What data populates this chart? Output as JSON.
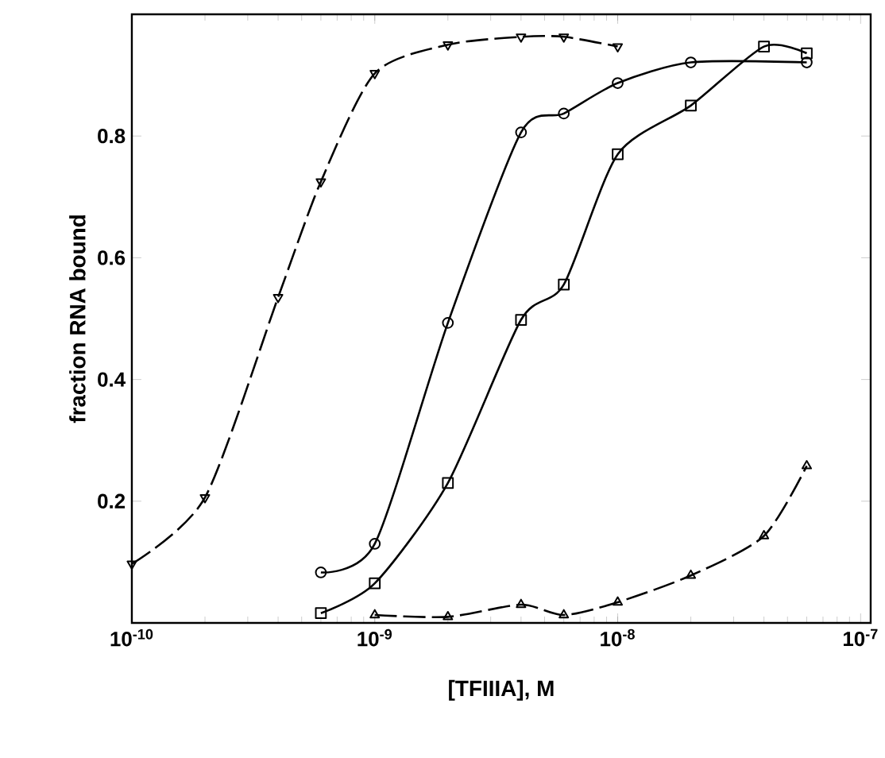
{
  "chart_data": {
    "type": "line",
    "xlabel": "[TFIIIA], M",
    "ylabel": "fraction RNA bound",
    "log": "x",
    "grid": false,
    "xlim": [
      1e-10,
      1.1e-07
    ],
    "ylim": [
      0,
      1.0
    ],
    "xticks": [
      {
        "value": 1e-10,
        "label": "10$^{-10}$"
      },
      {
        "value": 1e-09,
        "label": "10$^{-9}$"
      },
      {
        "value": 1e-08,
        "label": "10$^{-8}$"
      },
      {
        "value": 1e-07,
        "label": "10$^{-7}$"
      }
    ],
    "yticks": [
      0.2,
      0.4,
      0.6,
      0.8
    ],
    "series": [
      {
        "color": "#000000",
        "marker": "triangle_down",
        "line_style": "dashed",
        "x": [
          1e-10,
          2e-10,
          4e-10,
          6e-10,
          1e-09,
          2e-09,
          4e-09,
          6e-09,
          1e-08
        ],
        "values": [
          0.097,
          0.206,
          0.535,
          0.725,
          0.903,
          0.95,
          0.963,
          0.963,
          0.947
        ]
      },
      {
        "color": "#000000",
        "marker": "circle",
        "line_style": "solid",
        "x": [
          6e-10,
          1e-09,
          2e-09,
          4e-09,
          6e-09,
          1e-08,
          2e-08,
          6e-08
        ],
        "values": [
          0.083,
          0.13,
          0.493,
          0.806,
          0.837,
          0.887,
          0.921,
          0.921
        ]
      },
      {
        "color": "#000000",
        "marker": "square",
        "line_style": "solid",
        "x": [
          6e-10,
          1e-09,
          2e-09,
          4e-09,
          6e-09,
          1e-08,
          2e-08,
          4e-08,
          6e-08
        ],
        "values": [
          0.016,
          0.065,
          0.23,
          0.498,
          0.556,
          0.77,
          0.85,
          0.947,
          0.936
        ]
      },
      {
        "color": "#000000",
        "marker": "triangle",
        "line_style": "dashed",
        "x": [
          1e-09,
          2e-09,
          4e-09,
          6e-09,
          1e-08,
          2e-08,
          4e-08,
          6e-08
        ],
        "values": [
          0.013,
          0.01,
          0.03,
          0.013,
          0.034,
          0.078,
          0.143,
          0.258
        ]
      }
    ]
  }
}
